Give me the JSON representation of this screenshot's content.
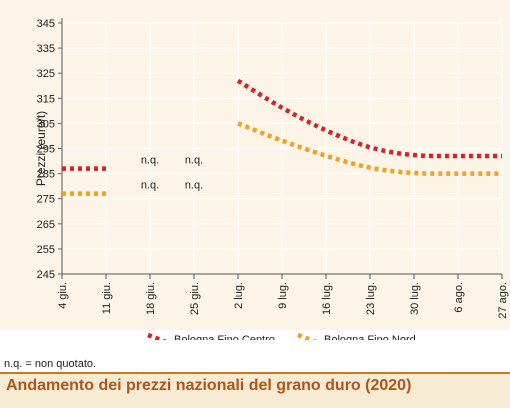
{
  "chart_data": {
    "type": "line",
    "title": "Andamento dei prezzi nazionali del grano duro (2020)",
    "ylabel": "Prezzi (euro/t)",
    "xlabel": "",
    "ylim": [
      245,
      345
    ],
    "yticks": [
      245,
      255,
      265,
      275,
      285,
      295,
      305,
      315,
      325,
      335,
      345
    ],
    "categories": [
      "4 giu.",
      "11 giu.",
      "18 giu.",
      "25 giu.",
      "2 lug.",
      "9 lug.",
      "16 lug.",
      "23 lug.",
      "30 lug.",
      "6 ago.",
      "27 ago."
    ],
    "grid": true,
    "legend_position": "bottom",
    "series": [
      {
        "name": "Bologna Fino Centro",
        "color": "#d6202a",
        "values": [
          287,
          287,
          null,
          null,
          322,
          311,
          302,
          295,
          292,
          292,
          292
        ]
      },
      {
        "name": "Bologna Fino Nord",
        "color": "#f2a01e",
        "values": [
          277,
          277,
          null,
          null,
          305,
          298,
          292,
          287,
          285,
          285,
          285
        ]
      }
    ],
    "annotations": [
      {
        "text": "n.q.",
        "category": "18 giu.",
        "y": 289
      },
      {
        "text": "n.q.",
        "category": "25 giu.",
        "y": 289
      },
      {
        "text": "n.q.",
        "category": "18 giu.",
        "y": 279
      },
      {
        "text": "n.q.",
        "category": "25 giu.",
        "y": 279
      }
    ]
  },
  "note": "n.q. = non quotato.",
  "footer": {
    "title": "Andamento dei prezzi nazionali del grano duro (2020)"
  },
  "colors": {
    "background": "#fcf4e6",
    "footer_band": "#f7ebd3",
    "footer_text": "#b0551a"
  }
}
